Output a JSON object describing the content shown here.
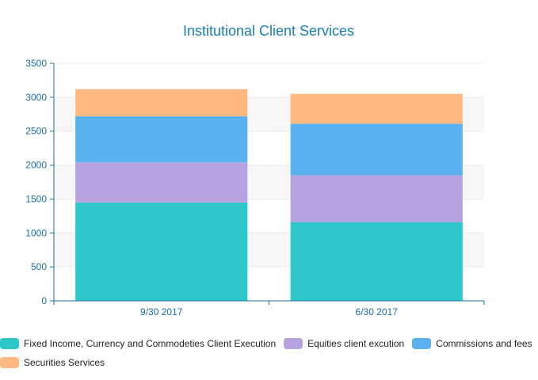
{
  "chart_data": {
    "type": "bar",
    "stacked": true,
    "title": "Institutional Client Services",
    "categories": [
      "9/30 2017",
      "6/30 2017"
    ],
    "series": [
      {
        "name": "Fixed Income, Currency and Commodeties  Client Execution",
        "values": [
          1450,
          1160
        ],
        "color": "#2ec7c9"
      },
      {
        "name": "Equities client excution",
        "values": [
          590,
          690
        ],
        "color": "#b6a2de"
      },
      {
        "name": "Commissions and fees",
        "values": [
          680,
          760
        ],
        "color": "#5ab1ef"
      },
      {
        "name": "Securities Services",
        "values": [
          400,
          440
        ],
        "color": "#ffb980"
      }
    ],
    "ylim": [
      0,
      3500
    ],
    "yticks": [
      0,
      500,
      1000,
      1500,
      2000,
      2500,
      3000,
      3500
    ],
    "xlabel": "",
    "ylabel": "",
    "grid": true,
    "legend_position": "bottom",
    "axis_color": "#1a6fa8"
  }
}
